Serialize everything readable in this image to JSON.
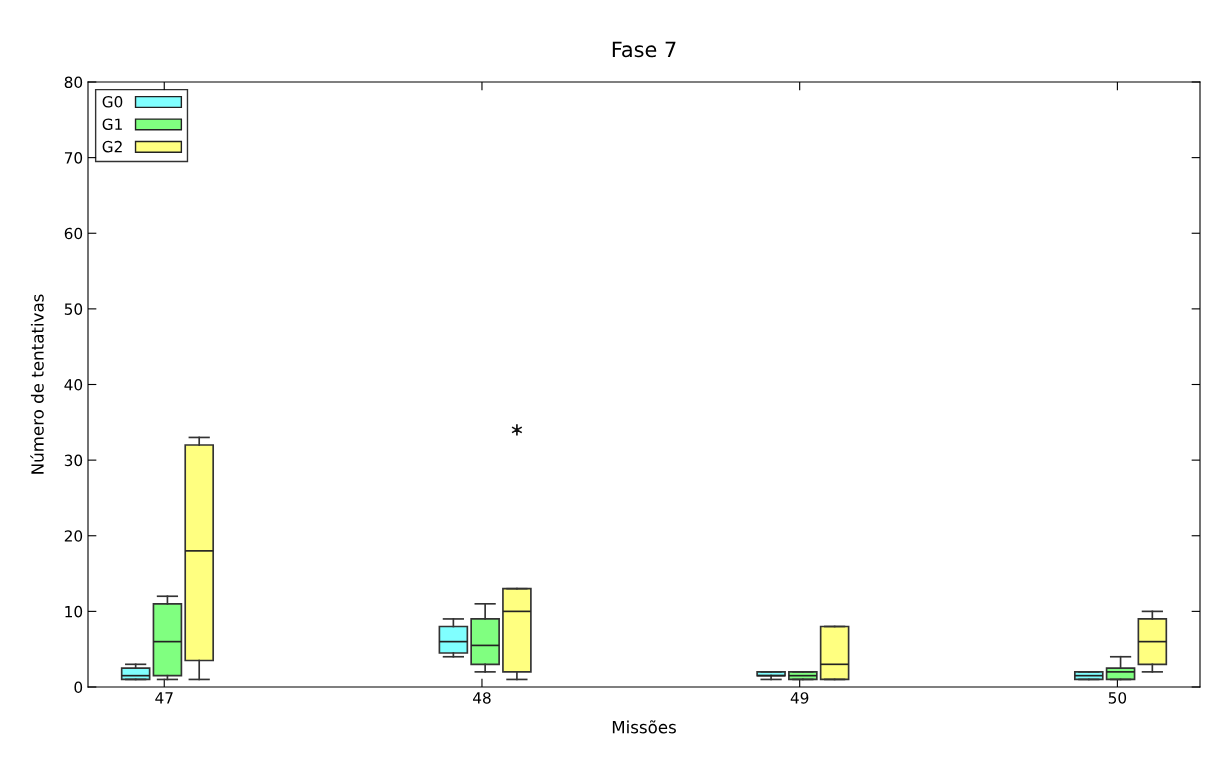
{
  "chart_data": {
    "type": "box",
    "title": "Fase 7",
    "xlabel": "Missões",
    "ylabel": "Número de tentativas",
    "categories": [
      "47",
      "48",
      "49",
      "50"
    ],
    "ylim": [
      0,
      80
    ],
    "yticks": [
      0,
      10,
      20,
      30,
      40,
      50,
      60,
      70,
      80
    ],
    "grid": false,
    "legend": "top left",
    "series": [
      {
        "name": "G0",
        "color": "#80ffff",
        "boxes": [
          {
            "low": 1,
            "q1": 1,
            "median": 1.5,
            "q3": 2.5,
            "high": 3
          },
          {
            "low": 4,
            "q1": 4.5,
            "median": 6,
            "q3": 8,
            "high": 9
          },
          {
            "low": 1,
            "q1": 1.5,
            "median": 1.5,
            "q3": 2,
            "high": 2
          },
          {
            "low": 1,
            "q1": 1,
            "median": 1.5,
            "q3": 2,
            "high": 2
          }
        ]
      },
      {
        "name": "G1",
        "color": "#80ff80",
        "boxes": [
          {
            "low": 1,
            "q1": 1.5,
            "median": 6,
            "q3": 11,
            "high": 12
          },
          {
            "low": 2,
            "q1": 3,
            "median": 5.5,
            "q3": 9,
            "high": 11
          },
          {
            "low": 1,
            "q1": 1,
            "median": 1.5,
            "q3": 2,
            "high": 2
          },
          {
            "low": 1,
            "q1": 1,
            "median": 2,
            "q3": 2.5,
            "high": 4
          }
        ]
      },
      {
        "name": "G2",
        "color": "#ffff80",
        "boxes": [
          {
            "low": 1,
            "q1": 3.5,
            "median": 18,
            "q3": 32,
            "high": 33
          },
          {
            "low": 1,
            "q1": 2,
            "median": 10,
            "q3": 13,
            "high": 13,
            "outliers": [
              34
            ]
          },
          {
            "low": 1,
            "q1": 1,
            "median": 3,
            "q3": 8,
            "high": 8
          },
          {
            "low": 2,
            "q1": 3,
            "median": 6,
            "q3": 9,
            "high": 10
          }
        ]
      }
    ]
  }
}
